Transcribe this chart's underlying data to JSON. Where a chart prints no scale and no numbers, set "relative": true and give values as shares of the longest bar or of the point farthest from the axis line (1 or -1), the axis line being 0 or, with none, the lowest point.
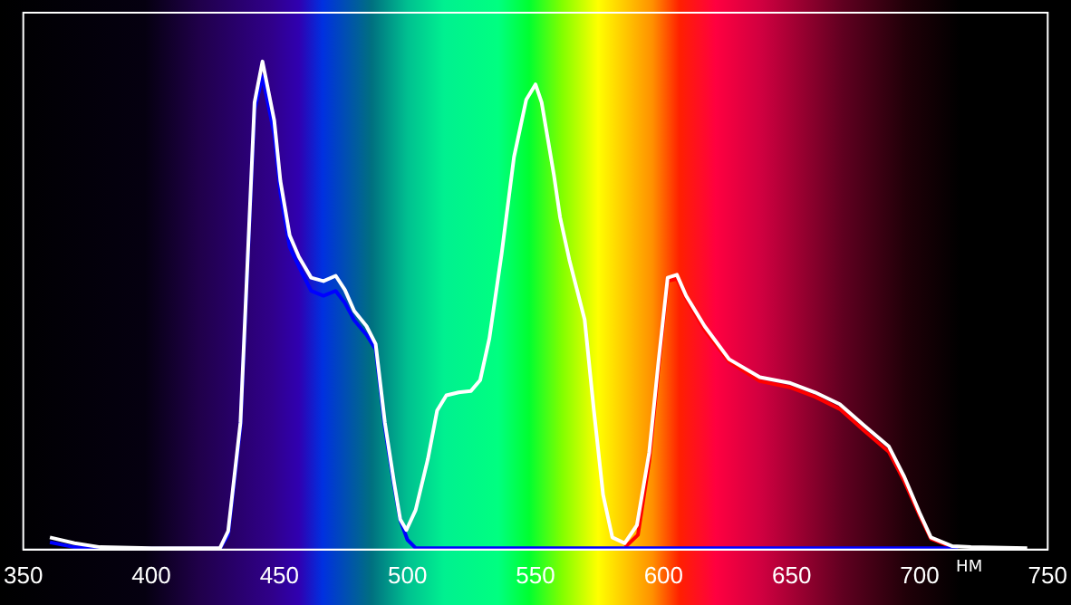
{
  "chart_data": {
    "type": "line",
    "relative": true,
    "xlabel": "НМ",
    "xlim": [
      350,
      750
    ],
    "xticks": [
      350,
      400,
      450,
      500,
      550,
      600,
      650,
      700,
      750
    ],
    "grid": false,
    "legend": false,
    "marker": "none",
    "line_style": "solid",
    "series": [
      {
        "color": "#ffffff",
        "x": [
          360.4,
          370,
          380,
          400,
          426.8,
          430,
          434.8,
          437.9,
          440.3,
          443.4,
          448,
          450.4,
          454,
          457.6,
          462.4,
          467.2,
          472,
          475.6,
          479.2,
          484,
          487.6,
          491.2,
          494.8,
          497.2,
          499.6,
          503.2,
          508,
          511.6,
          515.2,
          520,
          524.8,
          528.4,
          532,
          536.8,
          541.6,
          546.4,
          550,
          552.4,
          557.2,
          559.6,
          563.2,
          569.2,
          572.8,
          576.4,
          580,
          584.8,
          589.6,
          594.4,
          598,
          601.6,
          605.2,
          608.8,
          616,
          625.6,
          637.6,
          649.6,
          659.2,
          668.8,
          678.4,
          688,
          694,
          700,
          704.4,
          712.8,
          720,
          742
        ],
        "values": [
          0.025,
          0.013,
          0.005,
          0.003,
          0.003,
          0.038,
          0.26,
          0.63,
          0.916,
          1.0,
          0.879,
          0.755,
          0.644,
          0.6,
          0.557,
          0.55,
          0.561,
          0.532,
          0.489,
          0.458,
          0.421,
          0.26,
          0.137,
          0.062,
          0.04,
          0.081,
          0.186,
          0.285,
          0.316,
          0.322,
          0.325,
          0.347,
          0.433,
          0.607,
          0.804,
          0.922,
          0.953,
          0.916,
          0.767,
          0.681,
          0.594,
          0.471,
          0.285,
          0.112,
          0.025,
          0.013,
          0.05,
          0.199,
          0.384,
          0.557,
          0.563,
          0.52,
          0.458,
          0.39,
          0.353,
          0.341,
          0.322,
          0.298,
          0.254,
          0.211,
          0.149,
          0.075,
          0.025,
          0.007,
          0.005,
          0.003
        ]
      },
      {
        "color": "#0000ff",
        "x": [
          360.4,
          370,
          380,
          426.8,
          430,
          434.8,
          437.9,
          440.3,
          443.4,
          448,
          450.4,
          454,
          457.6,
          462.4,
          467.2,
          472,
          475.6,
          479.2,
          484,
          487.6,
          491.2,
          494.8,
          497.2,
          500,
          503.2,
          600,
          715
        ],
        "values": [
          0.015,
          0.005,
          0.002,
          0.002,
          0.03,
          0.25,
          0.62,
          0.9,
          0.97,
          0.85,
          0.73,
          0.62,
          0.58,
          0.53,
          0.52,
          0.53,
          0.505,
          0.47,
          0.44,
          0.41,
          0.25,
          0.13,
          0.06,
          0.02,
          0.003,
          0.003,
          0.003
        ]
      },
      {
        "color": "#ff0000",
        "x": [
          585,
          590,
          594.4,
          598,
          601.6,
          605.2,
          608.8,
          616,
          625.6,
          637.6,
          649.6,
          659.2,
          668.8,
          678.4,
          688,
          694,
          700,
          704.4,
          712.8
        ],
        "values": [
          0.005,
          0.03,
          0.18,
          0.37,
          0.55,
          0.555,
          0.515,
          0.45,
          0.385,
          0.345,
          0.332,
          0.313,
          0.288,
          0.243,
          0.2,
          0.14,
          0.07,
          0.022,
          0.005
        ]
      }
    ]
  }
}
